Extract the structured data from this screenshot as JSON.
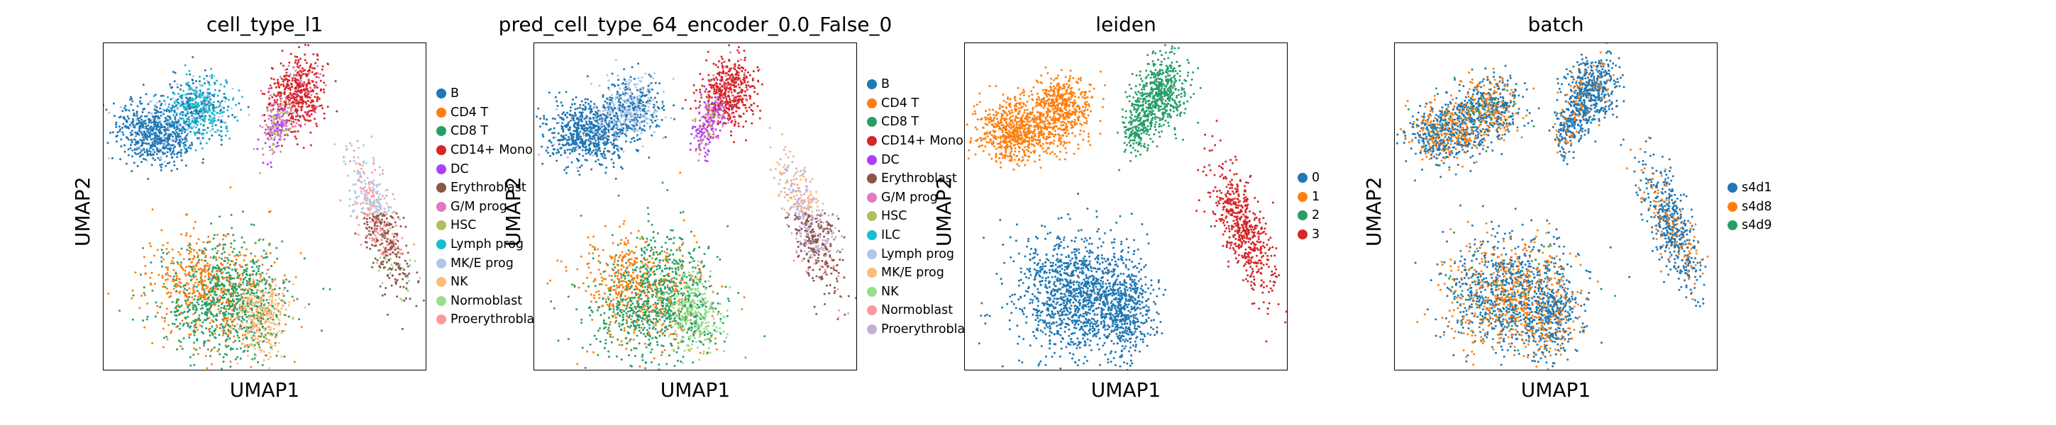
{
  "chart_data": [
    {
      "type": "scatter",
      "title": "cell_type_l1",
      "xlabel": "UMAP1",
      "ylabel": "UMAP2",
      "legend_placement": "right",
      "legend": [
        {
          "label": "B",
          "color": "#1f77b4"
        },
        {
          "label": "CD4 T",
          "color": "#ff7f0e"
        },
        {
          "label": "CD8 T",
          "color": "#279e68"
        },
        {
          "label": "CD14+ Mono",
          "color": "#d62728"
        },
        {
          "label": "DC",
          "color": "#aa40fc"
        },
        {
          "label": "Erythroblast",
          "color": "#8c564b"
        },
        {
          "label": "G/M prog",
          "color": "#e377c2"
        },
        {
          "label": "HSC",
          "color": "#b5bd61"
        },
        {
          "label": "Lymph prog",
          "color": "#17becf"
        },
        {
          "label": "MK/E prog",
          "color": "#aec7e8"
        },
        {
          "label": "NK",
          "color": "#ffbb78"
        },
        {
          "label": "Normoblast",
          "color": "#98df8a"
        },
        {
          "label": "Proerythroblast",
          "color": "#ff9896"
        }
      ]
    },
    {
      "type": "scatter",
      "title": "pred_cell_type_64_encoder_0.0_False_0",
      "xlabel": "UMAP1",
      "ylabel": "UMAP2",
      "legend_placement": "right",
      "legend": [
        {
          "label": "B",
          "color": "#1f77b4"
        },
        {
          "label": "CD4 T",
          "color": "#ff7f0e"
        },
        {
          "label": "CD8 T",
          "color": "#279e68"
        },
        {
          "label": "CD14+ Mono",
          "color": "#d62728"
        },
        {
          "label": "DC",
          "color": "#aa40fc"
        },
        {
          "label": "Erythroblast",
          "color": "#8c564b"
        },
        {
          "label": "G/M prog",
          "color": "#e377c2"
        },
        {
          "label": "HSC",
          "color": "#b5bd61"
        },
        {
          "label": "ILC",
          "color": "#17becf"
        },
        {
          "label": "Lymph prog",
          "color": "#aec7e8"
        },
        {
          "label": "MK/E prog",
          "color": "#ffbb78"
        },
        {
          "label": "NK",
          "color": "#98df8a"
        },
        {
          "label": "Normoblast",
          "color": "#ff9896"
        },
        {
          "label": "Proerythroblast",
          "color": "#c5b0d5"
        }
      ]
    },
    {
      "type": "scatter",
      "title": "leiden",
      "xlabel": "UMAP1",
      "ylabel": "UMAP2",
      "legend_placement": "right",
      "legend": [
        {
          "label": "0",
          "color": "#1f77b4"
        },
        {
          "label": "1",
          "color": "#ff7f0e"
        },
        {
          "label": "2",
          "color": "#279e68"
        },
        {
          "label": "3",
          "color": "#d62728"
        }
      ]
    },
    {
      "type": "scatter",
      "title": "batch",
      "xlabel": "UMAP1",
      "ylabel": "UMAP2",
      "legend_placement": "right",
      "legend": [
        {
          "label": "s4d1",
          "color": "#1f77b4"
        },
        {
          "label": "s4d8",
          "color": "#ff7f0e"
        },
        {
          "label": "s4d9",
          "color": "#279e68"
        }
      ]
    }
  ]
}
